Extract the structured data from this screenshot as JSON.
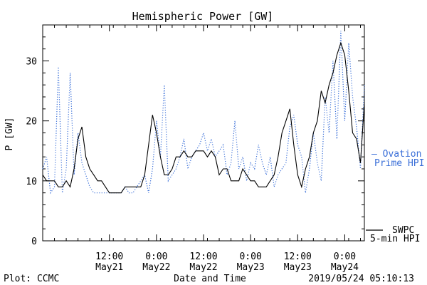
{
  "chart_data": {
    "type": "line",
    "title": "Hemispheric Power [GW]",
    "xlabel": "Date and Time",
    "ylabel": "P [GW]",
    "xlim": [
      "2019-05-20T19:00",
      "2019-05-24T05:00"
    ],
    "ylim": [
      0,
      36
    ],
    "y_ticks": [
      0,
      10,
      20,
      30
    ],
    "x_ticks": [
      {
        "time": "2019-05-21T12:00",
        "top": "12:00",
        "bottom": "May21"
      },
      {
        "time": "2019-05-22T00:00",
        "top": "0:00",
        "bottom": "May22"
      },
      {
        "time": "2019-05-22T12:00",
        "top": "12:00",
        "bottom": "May22"
      },
      {
        "time": "2019-05-23T00:00",
        "top": "0:00",
        "bottom": "May23"
      },
      {
        "time": "2019-05-23T12:00",
        "top": "12:00",
        "bottom": "May23"
      },
      {
        "time": "2019-05-24T00:00",
        "top": "0:00",
        "bottom": "May24"
      }
    ],
    "grid": false,
    "legend_placement": "right",
    "series": [
      {
        "name": "Ovation Prime HPI",
        "legend_lines": [
          "— Ovation",
          "Prime HPI"
        ],
        "style": "dotted",
        "color": "#3a6fd8",
        "x": [
          "2019-05-20T19:00",
          "2019-05-20T20:00",
          "2019-05-20T21:00",
          "2019-05-20T22:00",
          "2019-05-20T23:00",
          "2019-05-21T00:00",
          "2019-05-21T01:00",
          "2019-05-21T02:00",
          "2019-05-21T03:00",
          "2019-05-21T04:00",
          "2019-05-21T05:00",
          "2019-05-21T06:00",
          "2019-05-21T07:00",
          "2019-05-21T08:00",
          "2019-05-21T09:00",
          "2019-05-21T10:00",
          "2019-05-21T11:00",
          "2019-05-21T12:00",
          "2019-05-21T13:00",
          "2019-05-21T14:00",
          "2019-05-21T15:00",
          "2019-05-21T16:00",
          "2019-05-21T17:00",
          "2019-05-21T18:00",
          "2019-05-21T19:00",
          "2019-05-21T20:00",
          "2019-05-21T21:00",
          "2019-05-21T22:00",
          "2019-05-21T23:00",
          "2019-05-22T00:00",
          "2019-05-22T01:00",
          "2019-05-22T02:00",
          "2019-05-22T03:00",
          "2019-05-22T04:00",
          "2019-05-22T05:00",
          "2019-05-22T06:00",
          "2019-05-22T07:00",
          "2019-05-22T08:00",
          "2019-05-22T09:00",
          "2019-05-22T10:00",
          "2019-05-22T11:00",
          "2019-05-22T12:00",
          "2019-05-22T13:00",
          "2019-05-22T14:00",
          "2019-05-22T15:00",
          "2019-05-22T16:00",
          "2019-05-22T17:00",
          "2019-05-22T18:00",
          "2019-05-22T19:00",
          "2019-05-22T20:00",
          "2019-05-22T21:00",
          "2019-05-22T22:00",
          "2019-05-22T23:00",
          "2019-05-23T00:00",
          "2019-05-23T01:00",
          "2019-05-23T02:00",
          "2019-05-23T03:00",
          "2019-05-23T04:00",
          "2019-05-23T05:00",
          "2019-05-23T06:00",
          "2019-05-23T07:00",
          "2019-05-23T08:00",
          "2019-05-23T09:00",
          "2019-05-23T10:00",
          "2019-05-23T11:00",
          "2019-05-23T12:00",
          "2019-05-23T13:00",
          "2019-05-23T14:00",
          "2019-05-23T15:00",
          "2019-05-23T16:00",
          "2019-05-23T17:00",
          "2019-05-23T18:00",
          "2019-05-23T19:00",
          "2019-05-23T20:00",
          "2019-05-23T21:00",
          "2019-05-23T22:00",
          "2019-05-23T23:00",
          "2019-05-24T00:00",
          "2019-05-24T01:00",
          "2019-05-24T02:00",
          "2019-05-24T03:00",
          "2019-05-24T04:00",
          "2019-05-24T05:00"
        ],
        "y": [
          12,
          14,
          8,
          9,
          29,
          8,
          12,
          28,
          11,
          18,
          13,
          11,
          9,
          8,
          8,
          8,
          8,
          8,
          8,
          8,
          8,
          9,
          8,
          8,
          9,
          10,
          11,
          8,
          12,
          20,
          14,
          26,
          10,
          11,
          12,
          14,
          17,
          12,
          14,
          15,
          16,
          18,
          15,
          17,
          14,
          15,
          16,
          11,
          13,
          20,
          12,
          14,
          10,
          13,
          12,
          16,
          13,
          11,
          14,
          9,
          11,
          12,
          13,
          19,
          21,
          16,
          14,
          8,
          12,
          18,
          13,
          10,
          24,
          18,
          30,
          17,
          35,
          20,
          33,
          24,
          19,
          12,
          26
        ]
      },
      {
        "name": "SWPC 5-min HPI",
        "legend_lines": [
          "SWPC",
          "5-min HPI"
        ],
        "style": "solid",
        "color": "#000000",
        "x": [
          "2019-05-20T19:00",
          "2019-05-20T20:00",
          "2019-05-20T21:00",
          "2019-05-20T22:00",
          "2019-05-20T23:00",
          "2019-05-21T00:00",
          "2019-05-21T01:00",
          "2019-05-21T02:00",
          "2019-05-21T03:00",
          "2019-05-21T04:00",
          "2019-05-21T05:00",
          "2019-05-21T06:00",
          "2019-05-21T07:00",
          "2019-05-21T08:00",
          "2019-05-21T09:00",
          "2019-05-21T10:00",
          "2019-05-21T11:00",
          "2019-05-21T12:00",
          "2019-05-21T13:00",
          "2019-05-21T14:00",
          "2019-05-21T15:00",
          "2019-05-21T16:00",
          "2019-05-21T17:00",
          "2019-05-21T18:00",
          "2019-05-21T19:00",
          "2019-05-21T20:00",
          "2019-05-21T21:00",
          "2019-05-21T22:00",
          "2019-05-21T23:00",
          "2019-05-22T00:00",
          "2019-05-22T01:00",
          "2019-05-22T02:00",
          "2019-05-22T03:00",
          "2019-05-22T04:00",
          "2019-05-22T05:00",
          "2019-05-22T06:00",
          "2019-05-22T07:00",
          "2019-05-22T08:00",
          "2019-05-22T09:00",
          "2019-05-22T10:00",
          "2019-05-22T11:00",
          "2019-05-22T12:00",
          "2019-05-22T13:00",
          "2019-05-22T14:00",
          "2019-05-22T15:00",
          "2019-05-22T16:00",
          "2019-05-22T17:00",
          "2019-05-22T18:00",
          "2019-05-22T19:00",
          "2019-05-22T20:00",
          "2019-05-22T21:00",
          "2019-05-22T22:00",
          "2019-05-22T23:00",
          "2019-05-23T00:00",
          "2019-05-23T01:00",
          "2019-05-23T02:00",
          "2019-05-23T03:00",
          "2019-05-23T04:00",
          "2019-05-23T05:00",
          "2019-05-23T06:00",
          "2019-05-23T07:00",
          "2019-05-23T08:00",
          "2019-05-23T09:00",
          "2019-05-23T10:00",
          "2019-05-23T11:00",
          "2019-05-23T12:00",
          "2019-05-23T13:00",
          "2019-05-23T14:00",
          "2019-05-23T15:00",
          "2019-05-23T16:00",
          "2019-05-23T17:00",
          "2019-05-23T18:00",
          "2019-05-23T19:00",
          "2019-05-23T20:00",
          "2019-05-23T21:00",
          "2019-05-23T22:00",
          "2019-05-23T23:00",
          "2019-05-24T00:00",
          "2019-05-24T01:00",
          "2019-05-24T02:00",
          "2019-05-24T03:00",
          "2019-05-24T04:00",
          "2019-05-24T05:00"
        ],
        "y": [
          11,
          10,
          10,
          10,
          9,
          9,
          10,
          9,
          12,
          17,
          19,
          14,
          12,
          11,
          10,
          10,
          9,
          8,
          8,
          8,
          8,
          9,
          9,
          9,
          9,
          9,
          11,
          16,
          21,
          18,
          14,
          11,
          11,
          12,
          14,
          14,
          15,
          14,
          14,
          15,
          15,
          15,
          14,
          15,
          14,
          11,
          12,
          12,
          10,
          10,
          10,
          12,
          11,
          10,
          10,
          9,
          9,
          9,
          10,
          11,
          14,
          18,
          20,
          22,
          16,
          11,
          9,
          12,
          14,
          18,
          20,
          25,
          23,
          26,
          28,
          31,
          33,
          31,
          25,
          18,
          17,
          13,
          23
        ]
      }
    ]
  },
  "footer": {
    "plot_credit": "Plot: CCMC",
    "timestamp": "2019/05/24 05:10:13"
  }
}
